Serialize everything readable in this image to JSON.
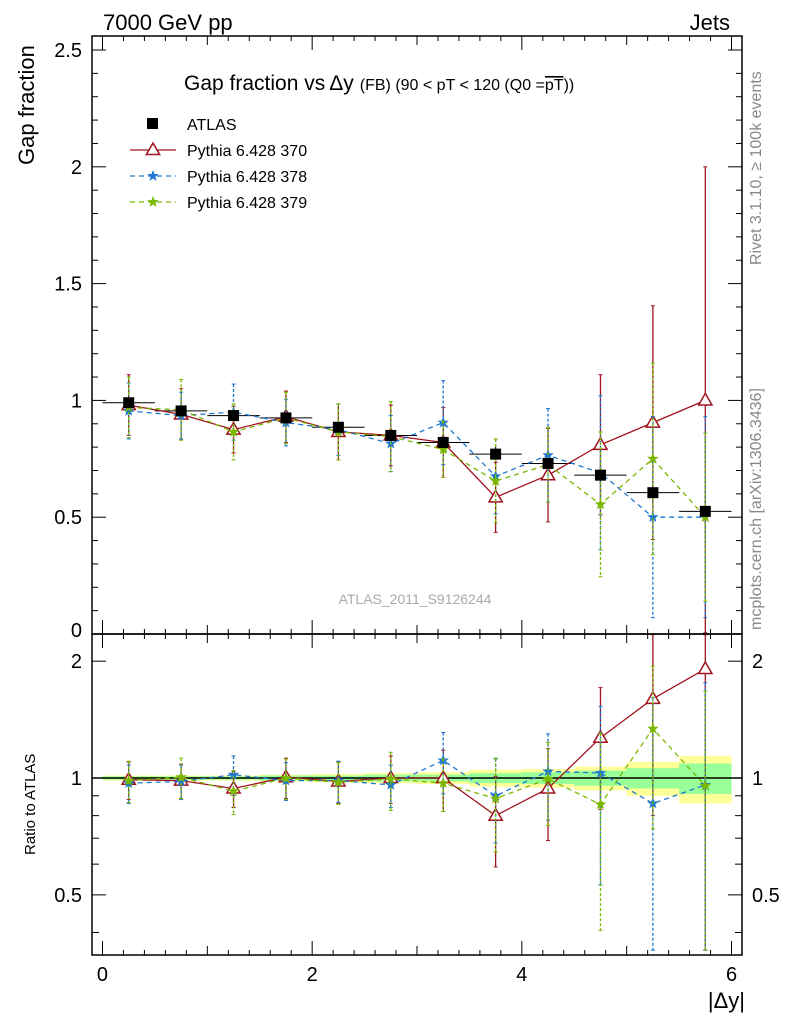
{
  "header": {
    "left": "7000 GeV pp",
    "right": "Jets"
  },
  "side_labels": {
    "rivet": "Rivet 3.1.10, ≥ 100k events",
    "mcplots": "mcplots.cern.ch [arXiv:1306.3436]"
  },
  "chart_data": {
    "type": "scatter",
    "title_main": "Gap fraction vs",
    "title_symbol": "Δy",
    "title_sub": "(FB) (90 < pT < 120 (Q0 =",
    "title_over": "pT",
    "title_end": "))",
    "watermark": "ATLAS_2011_S9126244",
    "xlabel": "|Δy|",
    "ylabel_top": "Gap fraction",
    "ylabel_bottom": "Ratio to ATLAS",
    "xlim": [
      -0.1,
      6.1
    ],
    "ylim_top": [
      0,
      2.56
    ],
    "ylim_bottom": [
      0.35,
      2.35
    ],
    "x_ticks": [
      0,
      2,
      4,
      6
    ],
    "y_ticks_top": [
      0.5,
      1,
      1.5,
      2,
      2.5
    ],
    "y_tick_labels_top": [
      "0.5",
      "1",
      "1.5",
      "2",
      "2.5"
    ],
    "y_tick_zero_label": "0",
    "y_ticks_bottom": [
      0.5,
      1,
      2
    ],
    "y_tick_labels_bottom": [
      "0.5",
      "1",
      "2"
    ],
    "x": [
      0.25,
      0.75,
      1.25,
      1.75,
      2.25,
      2.75,
      3.25,
      3.75,
      4.25,
      4.75,
      5.25,
      5.75
    ],
    "data": {
      "name": "ATLAS",
      "values": [
        0.99,
        0.955,
        0.935,
        0.925,
        0.885,
        0.85,
        0.82,
        0.77,
        0.73,
        0.68,
        0.605,
        0.525
      ],
      "errors": [
        0.02,
        0.02,
        0.02,
        0.02,
        0.02,
        0.02,
        0.025,
        0.03,
        0.03,
        0.04,
        0.04,
        0.05
      ],
      "band_rel_green": [
        0.01,
        0.01,
        0.01,
        0.015,
        0.015,
        0.02,
        0.02,
        0.03,
        0.035,
        0.045,
        0.06,
        0.09
      ],
      "band_rel_yellow": [
        0.015,
        0.015,
        0.015,
        0.02,
        0.025,
        0.03,
        0.035,
        0.05,
        0.055,
        0.07,
        0.1,
        0.14
      ]
    },
    "series": [
      {
        "name": "Pythia 6.428 370",
        "color": "#a0131e",
        "marker": "triangle",
        "dash": "",
        "values": [
          0.98,
          0.94,
          0.875,
          0.93,
          0.865,
          0.85,
          0.82,
          0.585,
          0.68,
          0.81,
          0.905,
          1.0
        ],
        "errors": [
          0.13,
          0.11,
          0.1,
          0.11,
          0.12,
          0.13,
          0.15,
          0.15,
          0.2,
          0.3,
          0.5,
          1.0
        ],
        "ratio": [
          0.99,
          0.985,
          0.94,
          1.005,
          0.98,
          1.0,
          1.0,
          0.8,
          0.94,
          1.27,
          1.6,
          1.91
        ],
        "ratio_errors": [
          0.11,
          0.1,
          0.1,
          0.12,
          0.12,
          0.14,
          0.18,
          0.21,
          0.25,
          0.44,
          0.8,
          1.9
        ]
      },
      {
        "name": "Pythia 6.428 378",
        "color": "#1f77d0",
        "marker": "star",
        "dash": "5,4",
        "values": [
          0.955,
          0.935,
          0.95,
          0.905,
          0.875,
          0.815,
          0.905,
          0.675,
          0.765,
          0.69,
          0.5,
          0.5
        ],
        "errors": [
          0.12,
          0.1,
          0.12,
          0.1,
          0.11,
          0.12,
          0.18,
          0.16,
          0.2,
          0.33,
          0.43,
          0.43
        ],
        "ratio": [
          0.97,
          0.98,
          1.02,
          0.985,
          0.985,
          0.96,
          1.11,
          0.9,
          1.04,
          1.03,
          0.86,
          0.96
        ],
        "ratio_errors": [
          0.11,
          0.1,
          0.12,
          0.11,
          0.12,
          0.12,
          0.2,
          0.22,
          0.26,
          0.5,
          0.75,
          0.8
        ]
      },
      {
        "name": "Pythia 6.428 379",
        "color": "#7ab800",
        "marker": "star",
        "dash": "5,4",
        "values": [
          0.97,
          0.96,
          0.865,
          0.925,
          0.865,
          0.845,
          0.79,
          0.655,
          0.725,
          0.555,
          0.75,
          0.5
        ],
        "errors": [
          0.13,
          0.13,
          0.12,
          0.11,
          0.12,
          0.15,
          0.12,
          0.18,
          0.16,
          0.31,
          0.41,
          0.36
        ],
        "ratio": [
          0.985,
          1.005,
          0.925,
          1.0,
          0.975,
          0.995,
          0.97,
          0.885,
          0.995,
          0.855,
          1.34,
          0.955
        ],
        "ratio_errors": [
          0.12,
          0.12,
          0.12,
          0.12,
          0.12,
          0.17,
          0.15,
          0.24,
          0.24,
          0.45,
          0.6,
          0.72
        ]
      }
    ],
    "legend_placement": "top-left",
    "grid": false
  }
}
